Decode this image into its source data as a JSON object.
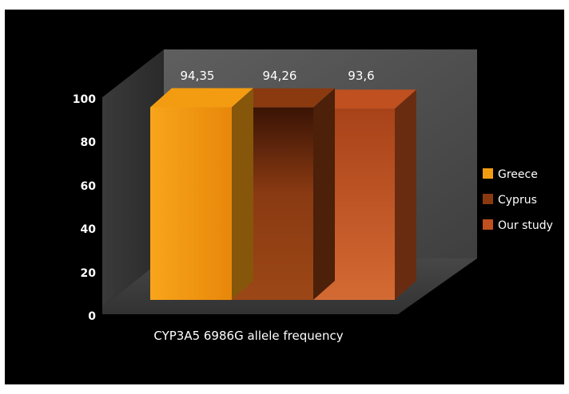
{
  "chart_data": {
    "type": "bar",
    "categories": [
      "CYP3A5 6986G allele frequency"
    ],
    "series": [
      {
        "name": "Greece",
        "values": [
          94.35
        ],
        "label": "94,35",
        "color": "#f39c12"
      },
      {
        "name": "Cyprus",
        "values": [
          94.26
        ],
        "label": "94,26",
        "color": "#8b3a10"
      },
      {
        "name": "Our study",
        "values": [
          93.6
        ],
        "label": "93,6",
        "color": "#c0501f"
      }
    ],
    "y_ticks": [
      "0",
      "20",
      "40",
      "60",
      "80",
      "100"
    ],
    "ylim": [
      0,
      100
    ],
    "legend_position": "right",
    "style": "3d-clustered-column",
    "background": "#000000",
    "grid": false
  }
}
